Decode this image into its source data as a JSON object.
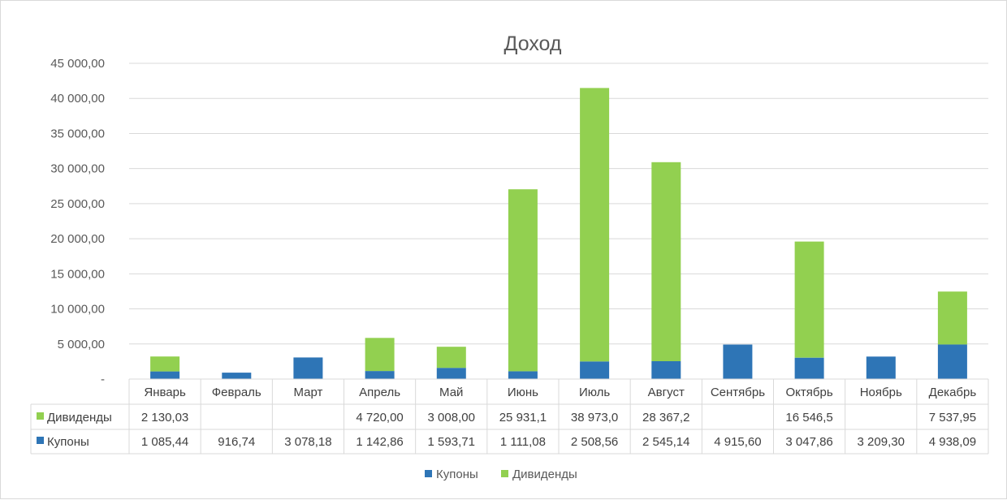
{
  "chart_data": {
    "type": "bar",
    "stacked": true,
    "title": "Доход",
    "categories": [
      "Январь",
      "Февраль",
      "Март",
      "Апрель",
      "Май",
      "Июнь",
      "Июль",
      "Август",
      "Сентябрь",
      "Октябрь",
      "Ноябрь",
      "Декабрь"
    ],
    "series": [
      {
        "name": "Купоны",
        "color": "#2e75b6",
        "values": [
          1085.44,
          916.74,
          3078.18,
          1142.86,
          1593.71,
          1111.08,
          2508.56,
          2545.14,
          4915.6,
          3047.86,
          3209.3,
          4938.09
        ],
        "labels": [
          "1 085,44",
          "916,74",
          "3 078,18",
          "1 142,86",
          "1 593,71",
          "1 111,08",
          "2 508,56",
          "2 545,14",
          "4 915,60",
          "3 047,86",
          "3 209,30",
          "4 938,09"
        ]
      },
      {
        "name": "Дивиденды",
        "color": "#92d050",
        "values": [
          2130.03,
          null,
          null,
          4720.0,
          3008.0,
          25931.1,
          38973.0,
          28367.2,
          null,
          16546.5,
          null,
          7537.95
        ],
        "labels": [
          "2 130,03",
          "",
          "",
          "4 720,00",
          "3 008,00",
          "25 931,1",
          "38 973,0",
          "28 367,2",
          "",
          "16 546,5",
          "",
          "7 537,95"
        ]
      }
    ],
    "ylim": [
      0,
      45000
    ],
    "yticks": [
      0,
      5000,
      10000,
      15000,
      20000,
      25000,
      30000,
      35000,
      40000,
      45000
    ],
    "ytick_labels": [
      "-",
      "5 000,00",
      "10 000,00",
      "15 000,00",
      "20 000,00",
      "25 000,00",
      "30 000,00",
      "35 000,00",
      "40 000,00",
      "45 000,00"
    ],
    "grid": true,
    "data_table": true,
    "legend": {
      "position": "bottom",
      "items": [
        "Купоны",
        "Дивиденды"
      ]
    }
  }
}
